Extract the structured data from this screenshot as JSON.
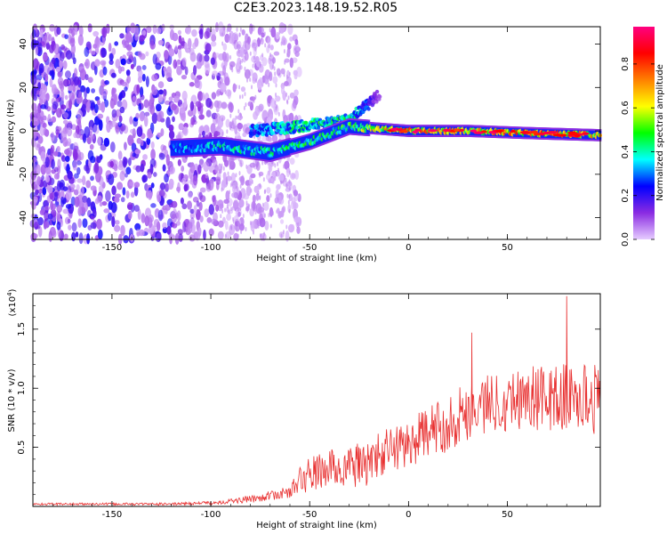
{
  "chart_data": [
    {
      "type": "heatmap",
      "title": "C2E3.2023.148.19.52.R05",
      "xlabel": "Height of straight line (km)",
      "ylabel": "Frequency (Hz)",
      "xlim": [
        -190,
        97
      ],
      "ylim": [
        -50,
        48
      ],
      "xticks": [
        -150,
        -100,
        -50,
        0,
        50
      ],
      "yticks": [
        -40,
        -20,
        0,
        20,
        40
      ],
      "colorbar": {
        "label": "Normalized spectral amplitude",
        "range": [
          0,
          0.97
        ],
        "ticks": [
          0.0,
          0.2,
          0.4,
          0.6,
          0.8
        ],
        "colormap": [
          "#e6ccff",
          "#8a2be2",
          "#0000ff",
          "#00ffff",
          "#00ff00",
          "#ffff00",
          "#ff8000",
          "#ff0000",
          "#ff0080"
        ]
      },
      "features": [
        {
          "name": "noise-region",
          "x_range": [
            -190,
            -95
          ],
          "freq_range": [
            -50,
            48
          ],
          "amplitude": 0.15
        },
        {
          "name": "signal-band",
          "points": [
            {
              "x": -120,
              "freq": -8,
              "amplitude": 0.35
            },
            {
              "x": -95,
              "freq": -7,
              "amplitude": 0.45
            },
            {
              "x": -70,
              "freq": -10,
              "amplitude": 0.45
            },
            {
              "x": -50,
              "freq": -5,
              "amplitude": 0.5
            },
            {
              "x": -30,
              "freq": 2,
              "amplitude": 0.55
            },
            {
              "x": 0,
              "freq": 0,
              "amplitude": 0.85
            },
            {
              "x": 30,
              "freq": 0,
              "amplitude": 0.7
            },
            {
              "x": 60,
              "freq": -1,
              "amplitude": 0.85
            },
            {
              "x": 97,
              "freq": -2,
              "amplitude": 0.75
            }
          ]
        },
        {
          "name": "branch",
          "points": [
            {
              "x": -80,
              "freq": 0,
              "amplitude": 0.35
            },
            {
              "x": -55,
              "freq": 2,
              "amplitude": 0.45
            },
            {
              "x": -30,
              "freq": 5,
              "amplitude": 0.5
            },
            {
              "x": -15,
              "freq": 17,
              "amplitude": 0.12
            }
          ]
        }
      ]
    },
    {
      "type": "line",
      "xlabel": "Height of straight line (km)",
      "ylabel": "SNR (10 * v/v)",
      "yscale_label": "(x10",
      "yscale_exponent": "4",
      "yscale_close": ")",
      "xlim": [
        -190,
        97
      ],
      "ylim": [
        0,
        1.8
      ],
      "xticks": [
        -150,
        -100,
        -50,
        0,
        50
      ],
      "yticks": [
        0.5,
        1.0,
        1.5
      ],
      "color": "#e83030",
      "series": [
        {
          "name": "SNR",
          "x": [
            -190,
            -150,
            -120,
            -100,
            -80,
            -70,
            -60,
            -55,
            -50,
            -40,
            -30,
            -20,
            -10,
            0,
            10,
            20,
            30,
            40,
            50,
            60,
            70,
            80,
            90,
            97
          ],
          "values": [
            0.02,
            0.02,
            0.02,
            0.03,
            0.06,
            0.09,
            0.12,
            0.22,
            0.27,
            0.32,
            0.33,
            0.37,
            0.48,
            0.53,
            0.63,
            0.7,
            0.82,
            0.87,
            0.9,
            0.93,
            0.91,
            0.92,
            0.92,
            0.9
          ],
          "noise": [
            0.01,
            0.01,
            0.01,
            0.015,
            0.03,
            0.04,
            0.05,
            0.13,
            0.15,
            0.17,
            0.18,
            0.2,
            0.2,
            0.2,
            0.22,
            0.24,
            0.26,
            0.26,
            0.26,
            0.28,
            0.28,
            0.3,
            0.3,
            0.3
          ]
        }
      ],
      "annotations": [
        {
          "x": 80,
          "y": 1.78,
          "label": "peak"
        },
        {
          "x": 32,
          "y": 1.47,
          "label": "spike"
        }
      ]
    }
  ]
}
